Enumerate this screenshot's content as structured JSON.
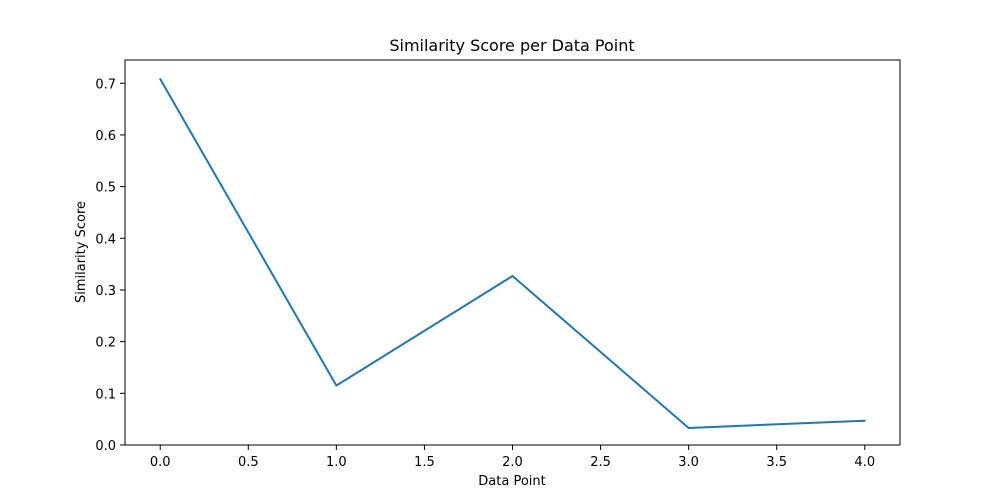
{
  "chart_data": {
    "type": "line",
    "title": "Similarity Score per Data Point",
    "xlabel": "Data Point",
    "ylabel": "Similarity Score",
    "x": [
      0,
      1,
      2,
      3,
      4
    ],
    "series": [
      {
        "values": [
          0.708,
          0.115,
          0.327,
          0.033,
          0.047
        ],
        "color": "#1f77b4"
      }
    ],
    "xlim": [
      -0.2,
      4.2
    ],
    "ylim": [
      0.0,
      0.745
    ],
    "xticks": [
      0.0,
      0.5,
      1.0,
      1.5,
      2.0,
      2.5,
      3.0,
      3.5,
      4.0
    ],
    "xtick_labels": [
      "0.0",
      "0.5",
      "1.0",
      "1.5",
      "2.0",
      "2.5",
      "3.0",
      "3.5",
      "4.0"
    ],
    "yticks": [
      0.0,
      0.1,
      0.2,
      0.3,
      0.4,
      0.5,
      0.6,
      0.7
    ],
    "ytick_labels": [
      "0.0",
      "0.1",
      "0.2",
      "0.3",
      "0.4",
      "0.5",
      "0.6",
      "0.7"
    ],
    "grid": false,
    "legend": "none"
  }
}
